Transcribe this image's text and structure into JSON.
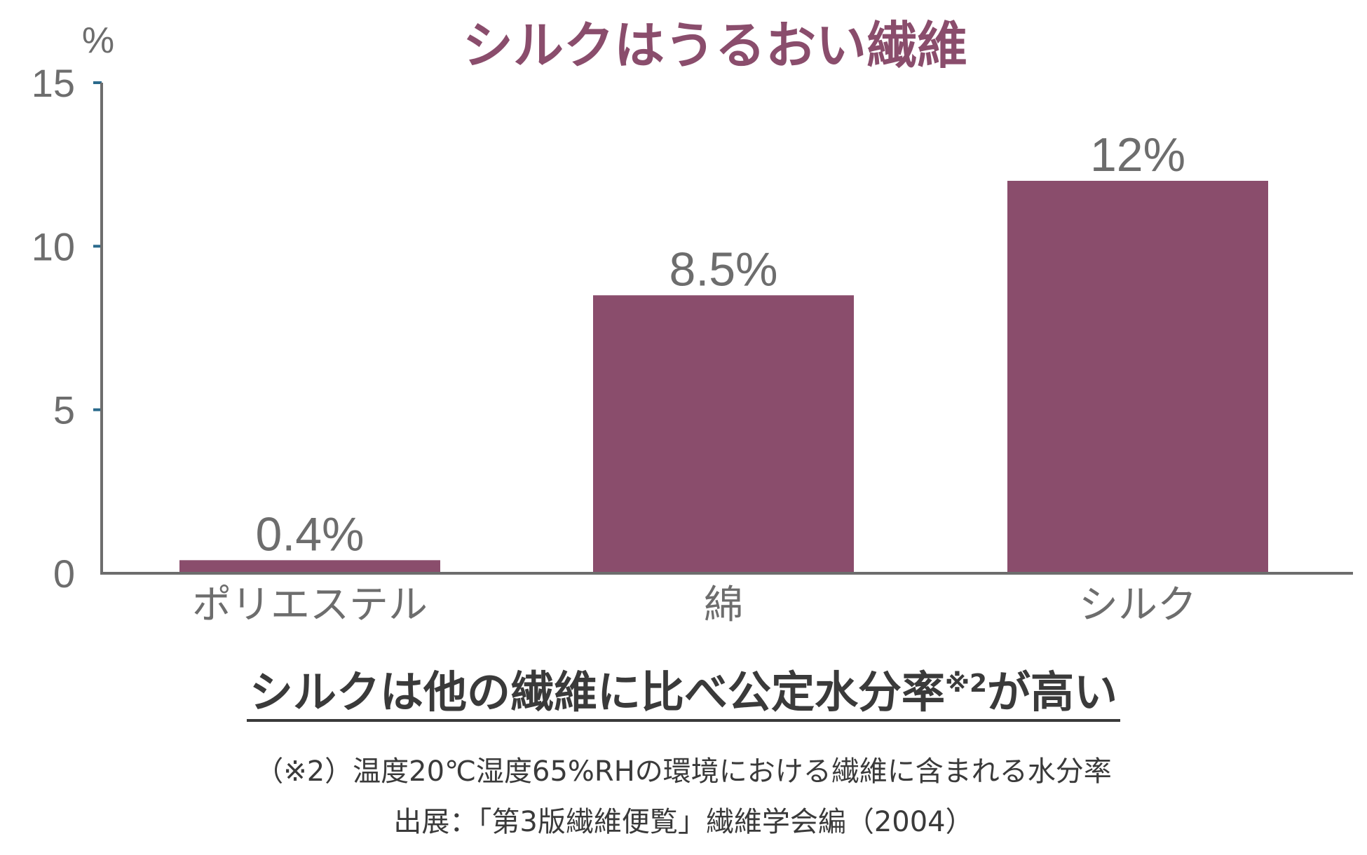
{
  "chart_data": {
    "type": "bar",
    "title": "シルクはうるおい繊維",
    "unit_label": "%",
    "categories": [
      "ポリエステル",
      "綿",
      "シルク"
    ],
    "values": [
      0.4,
      8.5,
      12
    ],
    "value_labels": [
      "0.4%",
      "8.5%",
      "12%"
    ],
    "ylim": [
      0,
      15
    ],
    "yticks": [
      0,
      5,
      10,
      15
    ],
    "ytick_labels": [
      "0",
      "5",
      "10",
      "15"
    ],
    "grid": false,
    "bar_color": "#8a4d6c",
    "title_color": "#8a4d6c"
  },
  "caption": {
    "headline": "シルクは他の繊維に比べ公定水分率",
    "headline_sup": "※2",
    "headline_tail": "が高い",
    "note_line1": "（※2）温度20℃湿度65%RHの環境における繊維に含まれる水分率",
    "note_line2": "出展：「第3版繊維便覧」繊維学会編（2004）"
  }
}
